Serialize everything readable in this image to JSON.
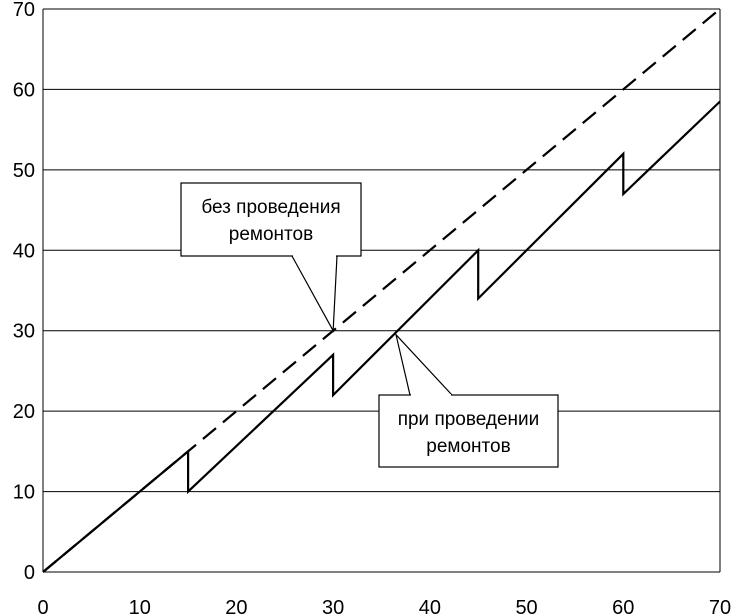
{
  "chart_data": {
    "type": "line",
    "title": "",
    "xlabel": "",
    "ylabel": "",
    "xlim": [
      0,
      70
    ],
    "ylim": [
      0,
      70
    ],
    "x_ticks": [
      "0",
      "10",
      "20",
      "30",
      "40",
      "50",
      "60",
      "70"
    ],
    "y_ticks": [
      "0",
      "10",
      "20",
      "30",
      "40",
      "50",
      "60",
      "70"
    ],
    "grid": "horizontal",
    "series": [
      {
        "name": "без проведения ремонтов",
        "style": "dashed",
        "color": "#000000",
        "points": [
          [
            0,
            0
          ],
          [
            70,
            70
          ]
        ]
      },
      {
        "name": "при проведении ремонтов",
        "style": "solid",
        "color": "#000000",
        "points": [
          [
            0,
            0
          ],
          [
            15,
            15
          ],
          [
            15,
            10
          ],
          [
            30,
            27
          ],
          [
            30,
            22
          ],
          [
            45,
            40
          ],
          [
            45,
            34
          ],
          [
            60,
            52
          ],
          [
            60,
            47
          ],
          [
            70,
            58.5
          ]
        ]
      }
    ],
    "annotations": [
      {
        "lines": [
          "без проведения",
          "ремонтов"
        ],
        "points_to": [
          30,
          30
        ]
      },
      {
        "lines": [
          "при проведении",
          "ремонтов"
        ],
        "points_to": [
          36.5,
          29.5
        ]
      }
    ]
  }
}
